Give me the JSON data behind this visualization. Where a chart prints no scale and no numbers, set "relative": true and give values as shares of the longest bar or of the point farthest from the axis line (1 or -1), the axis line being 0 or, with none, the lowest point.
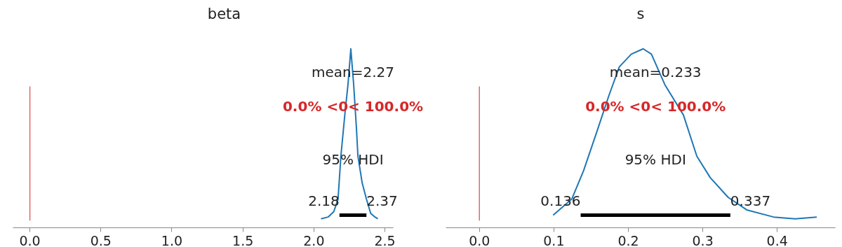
{
  "chart_data": [
    {
      "type": "line",
      "title": "beta",
      "relative": true,
      "tick_labels": "x",
      "xlim": [
        -0.119,
        2.559
      ],
      "xticks": [
        {
          "value": 0,
          "label": "0.0"
        },
        {
          "value": 0.5,
          "label": "0.5"
        },
        {
          "value": 1,
          "label": "1.0"
        },
        {
          "value": 1.5,
          "label": "1.5"
        },
        {
          "value": 2,
          "label": "2.0"
        },
        {
          "value": 2.5,
          "label": "2.5"
        }
      ],
      "series": [
        {
          "color": "#1f77b4",
          "x": [
            2.05,
            2.1,
            2.14,
            2.17,
            2.19,
            2.22,
            2.24,
            2.26,
            2.28,
            2.3,
            2.31,
            2.34,
            2.37,
            2.4,
            2.43,
            2.45
          ],
          "values": [
            0.05,
            0.06,
            0.09,
            0.16,
            0.4,
            0.65,
            0.8,
            1.0,
            0.8,
            0.55,
            0.4,
            0.25,
            0.16,
            0.08,
            0.06,
            0.05
          ]
        },
        {
          "color": "#000000",
          "x": [
            2.18,
            2.37
          ],
          "values": [
            0.07,
            0.07
          ]
        }
      ],
      "ref_lines": [
        {
          "axis": "x",
          "value": 0,
          "label": "0.0% <0< 100.0%",
          "color": "#d62728"
        }
      ],
      "annotations": [
        "mean=2.27",
        "95% HDI",
        {
          "text": "2.18",
          "x": 2.18,
          "y": 0.07
        },
        {
          "text": "2.37",
          "x": 2.37,
          "y": 0.07
        }
      ]
    },
    {
      "type": "line",
      "title": "s",
      "relative": true,
      "tick_labels": "x",
      "xlim": [
        -0.045,
        0.478
      ],
      "xticks": [
        {
          "value": 0,
          "label": "0.0"
        },
        {
          "value": 0.1,
          "label": "0.1"
        },
        {
          "value": 0.2,
          "label": "0.2"
        },
        {
          "value": 0.3,
          "label": "0.3"
        },
        {
          "value": 0.4,
          "label": "0.4"
        }
      ],
      "series": [
        {
          "color": "#1f77b4",
          "x": [
            0.099,
            0.124,
            0.14,
            0.158,
            0.174,
            0.188,
            0.204,
            0.22,
            0.231,
            0.249,
            0.274,
            0.292,
            0.31,
            0.334,
            0.359,
            0.395,
            0.424,
            0.453
          ],
          "values": [
            0.07,
            0.16,
            0.32,
            0.54,
            0.74,
            0.9,
            0.97,
            1.0,
            0.97,
            0.8,
            0.63,
            0.4,
            0.28,
            0.17,
            0.1,
            0.06,
            0.05,
            0.06
          ]
        },
        {
          "color": "#000000",
          "x": [
            0.136,
            0.337
          ],
          "values": [
            0.07,
            0.07
          ]
        }
      ],
      "ref_lines": [
        {
          "axis": "x",
          "value": 0,
          "label": "0.0% <0< 100.0%",
          "color": "#d62728"
        }
      ],
      "annotations": [
        "mean=0.233",
        "95% HDI",
        {
          "text": "0.136",
          "x": 0.136,
          "y": 0.07
        },
        {
          "text": "0.337",
          "x": 0.337,
          "y": 0.07
        }
      ]
    }
  ]
}
